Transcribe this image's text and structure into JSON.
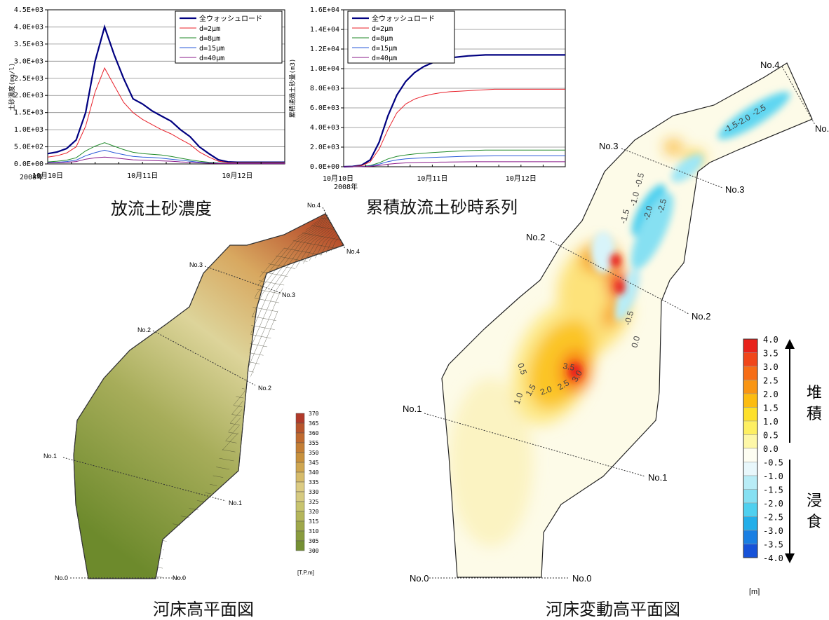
{
  "captions": {
    "conc": "放流土砂濃度",
    "cum": "累積放流土砂時系列",
    "bed": "河床高平面図",
    "change": "河床変動高平面図"
  },
  "sections": {
    "n0": "No.0",
    "n1": "No.1",
    "n2": "No.2",
    "n3": "No.3",
    "n4": "No.4"
  },
  "bed_legend": {
    "unit": "[T.P.m]",
    "levels": [
      "370",
      "365",
      "360",
      "355",
      "350",
      "345",
      "340",
      "335",
      "330",
      "325",
      "320",
      "315",
      "310",
      "305",
      "300"
    ],
    "colors": [
      "#b13a2a",
      "#b8552c",
      "#c06a2f",
      "#c47e35",
      "#c8913d",
      "#cfa650",
      "#d6bb6a",
      "#dccb82",
      "#d6ca80",
      "#c8c46e",
      "#b5b65a",
      "#9fa84a",
      "#8a9c3e",
      "#759034",
      "#62842a"
    ]
  },
  "change_legend": {
    "unit": "[m]",
    "levels": [
      "4.0",
      "3.5",
      "3.0",
      "2.5",
      "2.0",
      "1.5",
      "1.0",
      "0.5",
      "0.0",
      "-0.5",
      "-1.0",
      "-1.5",
      "-2.0",
      "-2.5",
      "-3.0",
      "-3.5",
      "-4.0"
    ],
    "colors": [
      "#e8221b",
      "#f0461a",
      "#f66d16",
      "#f99513",
      "#fcbc10",
      "#fde02a",
      "#fdef62",
      "#fdf7a8",
      "#fdfdf2",
      "#e8f7fb",
      "#b8ecf6",
      "#86e0f2",
      "#4fd0ef",
      "#22aee9",
      "#1a7fe2",
      "#1752d8",
      "#1228c8"
    ],
    "deposit": "堆積",
    "erosion": "浸食"
  },
  "contour_labels": {
    "pos": [
      "0.5",
      "1.0",
      "1.5",
      "2.0",
      "2.5",
      "3.0",
      "3.5"
    ],
    "neg": [
      "-0.5",
      "-1.0",
      "-1.5",
      "-2.0",
      "-2.5",
      "-0.5",
      "-1.5",
      "-2.0",
      "-2.5",
      "-0.5",
      "0.0"
    ]
  },
  "chart_data": [
    {
      "type": "line",
      "ylabel": "土砂濃度(mg/l)",
      "ylim": [
        0,
        4500
      ],
      "yticks": [
        "0.0E+00",
        "5.0E+02",
        "1.0E+03",
        "1.5E+03",
        "2.0E+03",
        "2.5E+03",
        "3.0E+03",
        "3.5E+03",
        "4.0E+03",
        "4.5E+03"
      ],
      "xticks": [
        "10月10日",
        "10月11日",
        "10月12日"
      ],
      "year": "2008年",
      "legend": "top-right",
      "grid": true,
      "x": [
        0,
        0.1,
        0.2,
        0.3,
        0.4,
        0.5,
        0.6,
        0.7,
        0.8,
        0.9,
        1.0,
        1.1,
        1.2,
        1.3,
        1.4,
        1.5,
        1.6,
        1.7,
        1.8,
        1.9,
        2.0,
        2.1,
        2.2,
        2.3,
        2.4,
        2.5
      ],
      "series": [
        {
          "name": "全ウォッシュロード",
          "color": "#000080",
          "width": 2.2,
          "values": [
            300,
            350,
            450,
            700,
            1500,
            3000,
            4000,
            3200,
            2500,
            1900,
            1750,
            1550,
            1400,
            1250,
            1000,
            800,
            500,
            300,
            120,
            60,
            50,
            50,
            50,
            50,
            50,
            50
          ]
        },
        {
          "name": "d=2μm",
          "color": "#e8202a",
          "width": 1,
          "values": [
            200,
            240,
            320,
            500,
            1100,
            2100,
            2800,
            2300,
            1800,
            1500,
            1300,
            1150,
            1000,
            880,
            720,
            570,
            350,
            200,
            80,
            40,
            35,
            35,
            35,
            35,
            35,
            35
          ]
        },
        {
          "name": "d=8μm",
          "color": "#208a2a",
          "width": 1,
          "values": [
            60,
            80,
            110,
            180,
            380,
            520,
            620,
            520,
            420,
            340,
            300,
            280,
            260,
            220,
            170,
            120,
            80,
            50,
            30,
            20,
            18,
            18,
            18,
            18,
            18,
            18
          ]
        },
        {
          "name": "d=15μm",
          "color": "#2a5ad8",
          "width": 1,
          "values": [
            40,
            50,
            70,
            110,
            240,
            330,
            400,
            330,
            270,
            220,
            200,
            190,
            170,
            140,
            110,
            80,
            50,
            30,
            20,
            15,
            12,
            12,
            12,
            12,
            12,
            12
          ]
        },
        {
          "name": "d=40μm",
          "color": "#8a1a8a",
          "width": 1,
          "values": [
            30,
            35,
            45,
            70,
            140,
            180,
            200,
            180,
            150,
            120,
            110,
            100,
            90,
            80,
            60,
            45,
            30,
            20,
            12,
            10,
            8,
            8,
            8,
            8,
            8,
            8
          ]
        }
      ]
    },
    {
      "type": "line",
      "ylabel": "累積通過土砂量(m3)",
      "ylim": [
        0,
        16000
      ],
      "yticks": [
        "0.0E+00",
        "2.0E+03",
        "4.0E+03",
        "6.0E+03",
        "8.0E+03",
        "1.0E+04",
        "1.2E+04",
        "1.4E+04",
        "1.6E+04"
      ],
      "xticks": [
        "10月10日",
        "10月11日",
        "10月12日"
      ],
      "year": "2008年",
      "legend": "top-left",
      "grid": true,
      "x": [
        0,
        0.1,
        0.2,
        0.3,
        0.4,
        0.5,
        0.6,
        0.7,
        0.8,
        0.9,
        1.0,
        1.1,
        1.2,
        1.3,
        1.4,
        1.5,
        1.6,
        1.7,
        1.8,
        1.9,
        2.0,
        2.1,
        2.2,
        2.3,
        2.4,
        2.5
      ],
      "series": [
        {
          "name": "全ウォッシュロード",
          "color": "#000080",
          "width": 2.2,
          "values": [
            0,
            30,
            150,
            700,
            2500,
            5200,
            7300,
            8700,
            9600,
            10200,
            10600,
            10900,
            11100,
            11200,
            11300,
            11350,
            11400,
            11400,
            11400,
            11400,
            11400,
            11400,
            11400,
            11400,
            11400,
            11400
          ]
        },
        {
          "name": "d=2μm",
          "color": "#e8202a",
          "width": 1,
          "values": [
            0,
            20,
            100,
            500,
            1800,
            3800,
            5500,
            6400,
            6900,
            7200,
            7400,
            7550,
            7650,
            7700,
            7750,
            7800,
            7850,
            7900,
            7900,
            7900,
            7900,
            7900,
            7900,
            7900,
            7900,
            7900
          ]
        },
        {
          "name": "d=8μm",
          "color": "#208a2a",
          "width": 1,
          "values": [
            0,
            5,
            30,
            120,
            400,
            800,
            1050,
            1200,
            1300,
            1380,
            1450,
            1500,
            1550,
            1600,
            1640,
            1670,
            1690,
            1700,
            1700,
            1700,
            1700,
            1700,
            1700,
            1700,
            1700,
            1700
          ]
        },
        {
          "name": "d=15μm",
          "color": "#2a5ad8",
          "width": 1,
          "values": [
            0,
            4,
            20,
            80,
            260,
            520,
            700,
            800,
            860,
            910,
            950,
            980,
            1010,
            1040,
            1070,
            1090,
            1100,
            1110,
            1110,
            1110,
            1110,
            1110,
            1110,
            1110,
            1110,
            1110
          ]
        },
        {
          "name": "d=40μm",
          "color": "#8a1a8a",
          "width": 1,
          "values": [
            0,
            2,
            10,
            40,
            130,
            260,
            340,
            390,
            420,
            440,
            460,
            470,
            480,
            490,
            500,
            505,
            510,
            510,
            510,
            510,
            510,
            510,
            510,
            510,
            510,
            510
          ]
        }
      ]
    }
  ]
}
